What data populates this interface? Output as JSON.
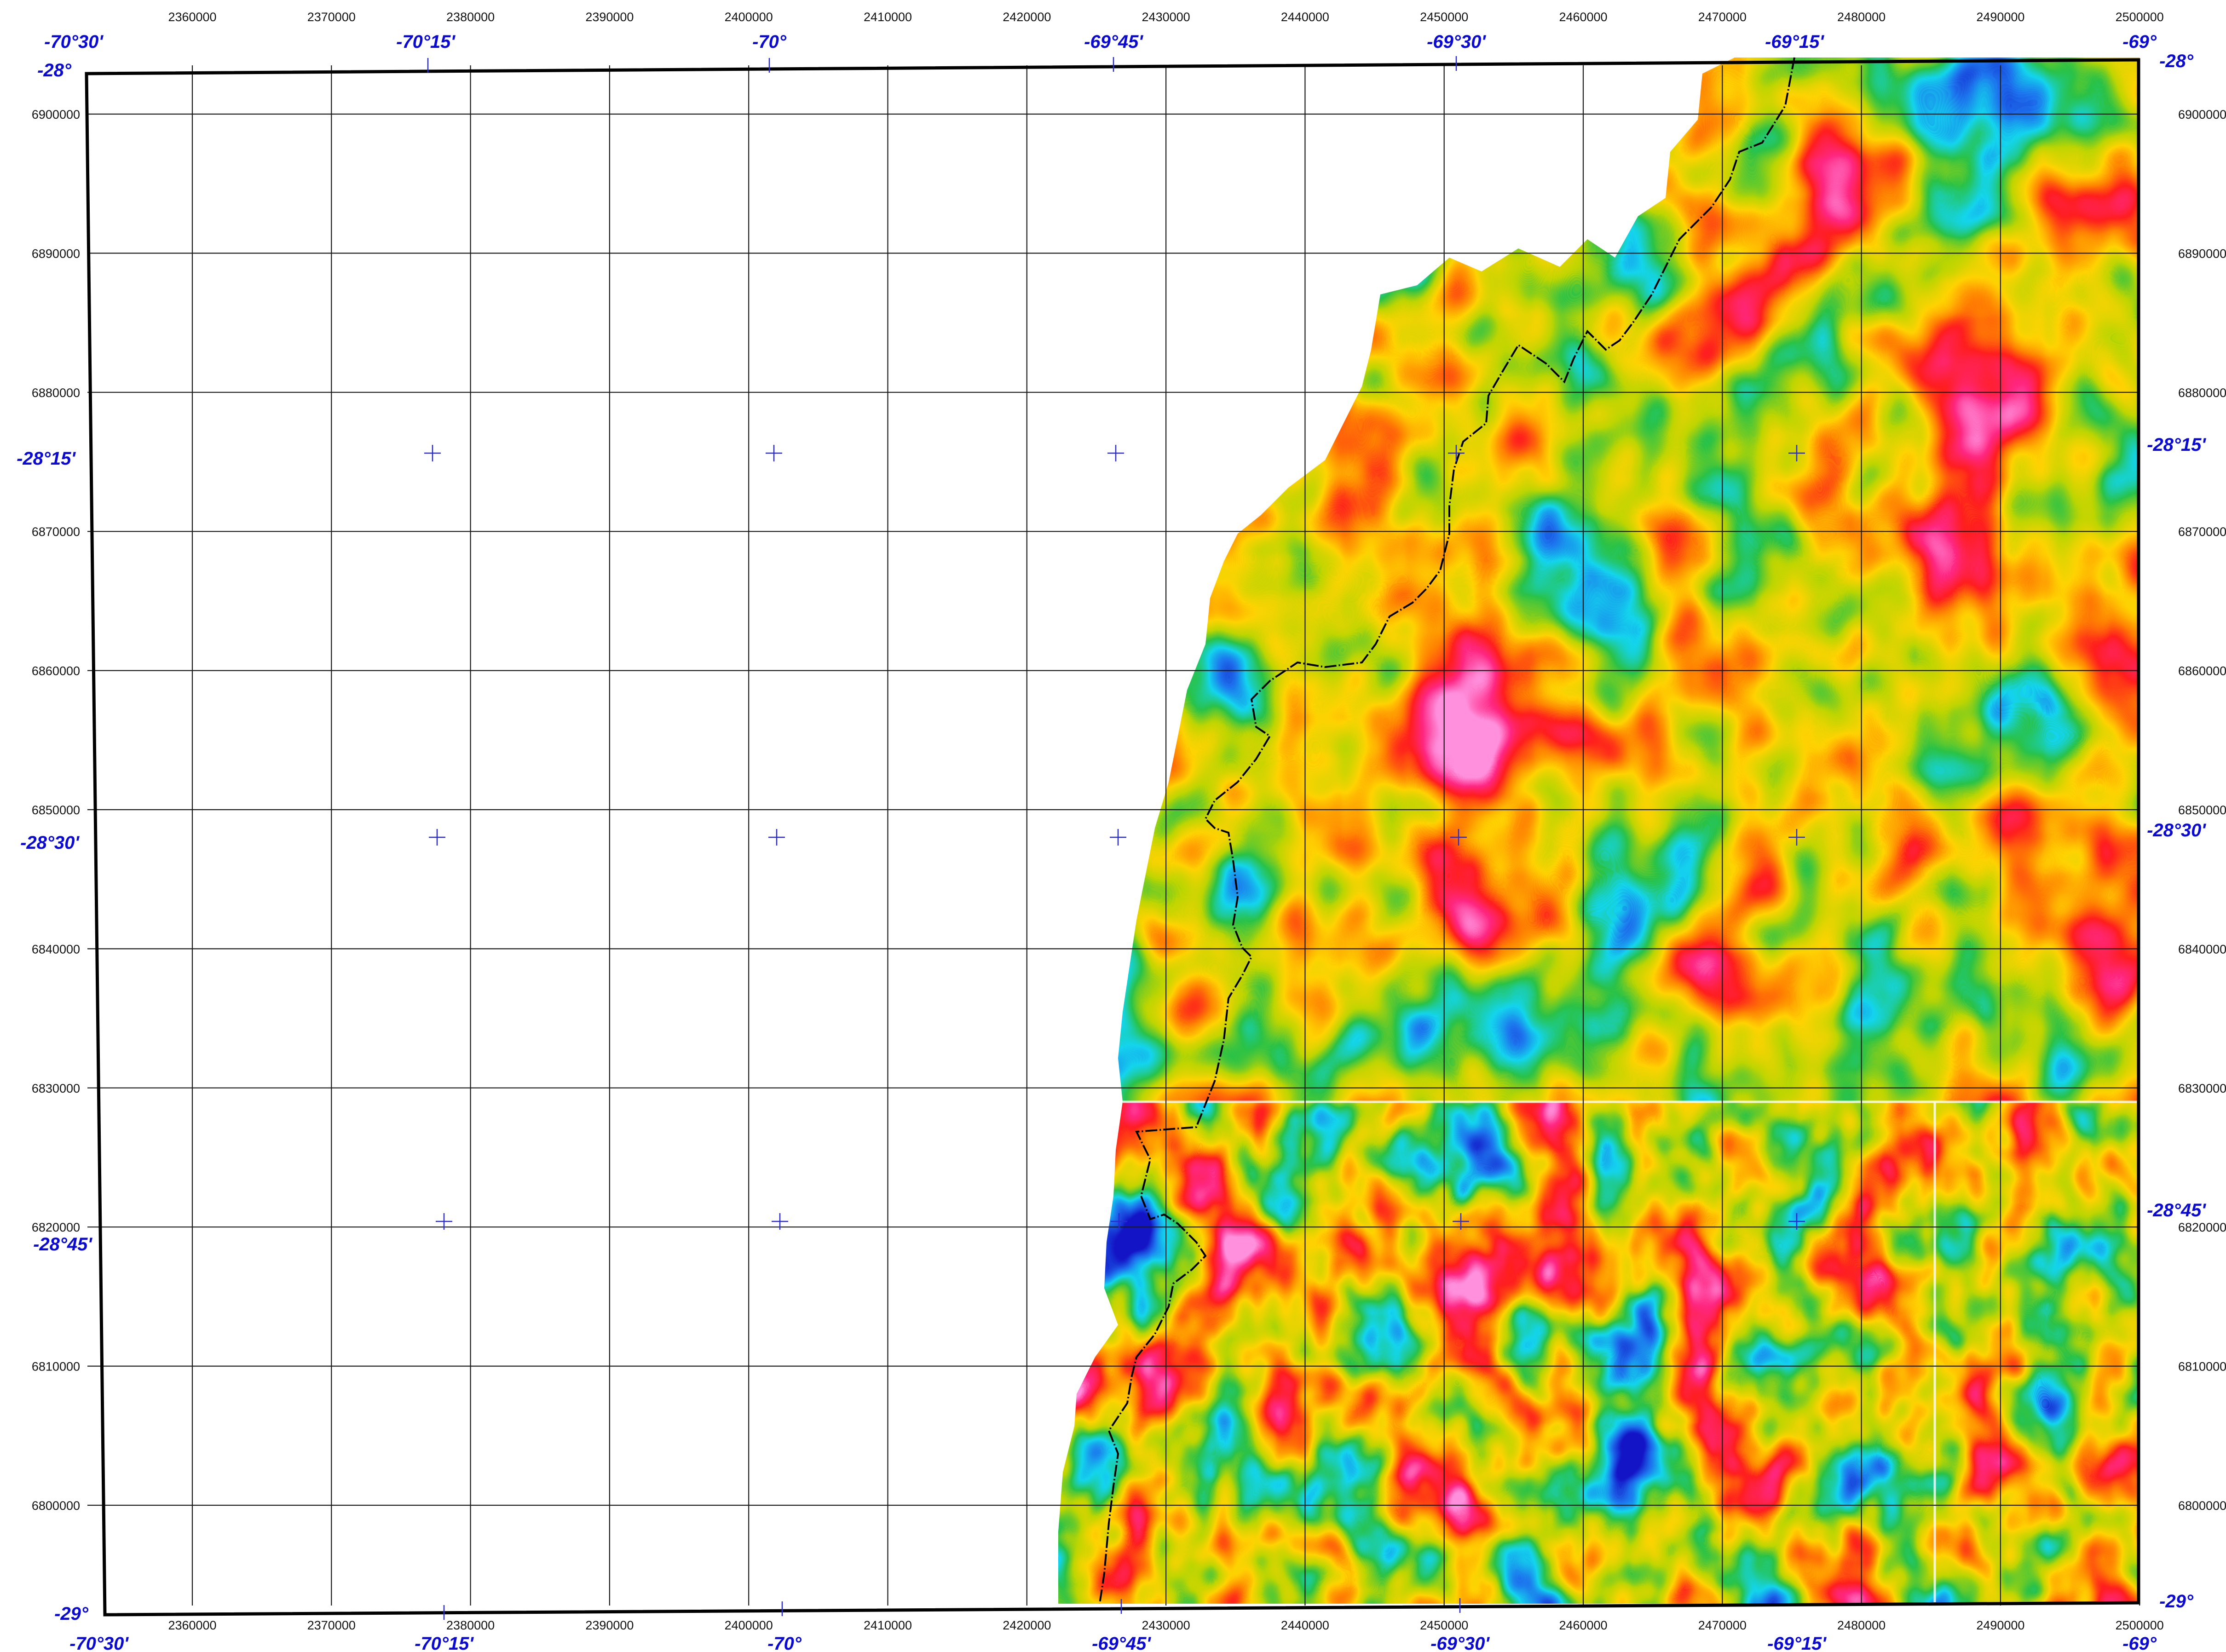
{
  "map": {
    "projected_x_labels": [
      "2360000",
      "2370000",
      "2380000",
      "2390000",
      "2400000",
      "2410000",
      "2420000",
      "2430000",
      "2440000",
      "2450000",
      "2460000",
      "2470000",
      "2480000",
      "2490000",
      "2500000"
    ],
    "projected_y_labels": [
      "6900000",
      "6890000",
      "6880000",
      "6870000",
      "6860000",
      "6850000",
      "6840000",
      "6830000",
      "6820000",
      "6810000",
      "6800000"
    ],
    "longitude_labels": [
      "-70°30'",
      "-70°15'",
      "-70°",
      "-69°45'",
      "-69°30'",
      "-69°15'",
      "-69°"
    ],
    "latitude_labels": [
      "-28°",
      "-28°15'",
      "-28°30'",
      "-28°45'",
      "-29°"
    ],
    "colors": {
      "palette": [
        "#0014d6",
        "#0a78ff",
        "#00e6ff",
        "#16d24e",
        "#b8e600",
        "#ffe400",
        "#ff8c00",
        "#ff1e1e",
        "#ff2a8c",
        "#ff9cf0"
      ],
      "frame": "#000000",
      "graticule": "#2b2bd6",
      "label_blue": "#0a0ad2"
    }
  }
}
